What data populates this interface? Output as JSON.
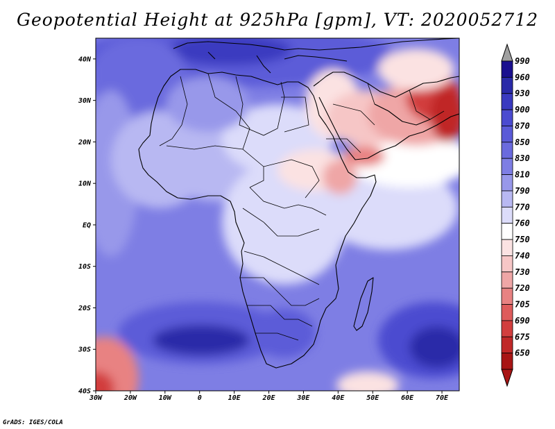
{
  "title": "Geopotential Height at 925hPa [gpm], VT: 2020052712",
  "credit": "GrADS: IGES/COLA",
  "map": {
    "lon_range": [
      -30,
      75
    ],
    "lat_range": [
      -40,
      45
    ],
    "lat_labels": [
      {
        "lat": 40,
        "text": "40N"
      },
      {
        "lat": 30,
        "text": "30N"
      },
      {
        "lat": 20,
        "text": "20N"
      },
      {
        "lat": 10,
        "text": "10N"
      },
      {
        "lat": 0,
        "text": "EQ"
      },
      {
        "lat": -10,
        "text": "10S"
      },
      {
        "lat": -20,
        "text": "20S"
      },
      {
        "lat": -30,
        "text": "30S"
      },
      {
        "lat": -40,
        "text": "40S"
      }
    ],
    "lon_labels": [
      {
        "lon": -30,
        "text": "30W"
      },
      {
        "lon": -20,
        "text": "20W"
      },
      {
        "lon": -10,
        "text": "10W"
      },
      {
        "lon": 0,
        "text": "0"
      },
      {
        "lon": 10,
        "text": "10E"
      },
      {
        "lon": 20,
        "text": "20E"
      },
      {
        "lon": 30,
        "text": "30E"
      },
      {
        "lon": 40,
        "text": "40E"
      },
      {
        "lon": 50,
        "text": "50E"
      },
      {
        "lon": 60,
        "text": "60E"
      },
      {
        "lon": 70,
        "text": "70E"
      }
    ]
  },
  "colorbar": {
    "levels": [
      "990",
      "960",
      "930",
      "900",
      "870",
      "850",
      "830",
      "810",
      "790",
      "770",
      "760",
      "750",
      "740",
      "730",
      "720",
      "705",
      "690",
      "675",
      "650"
    ],
    "colors": [
      "#1a0f8f",
      "#2a2aa8",
      "#3a3ac0",
      "#4b4bd0",
      "#5b5bd8",
      "#6a6ade",
      "#7e7ee4",
      "#9898ea",
      "#b8b8f2",
      "#dcdcfa",
      "#ffffff",
      "#fbe2e2",
      "#f6c6c6",
      "#efa6a6",
      "#e88282",
      "#de5c5c",
      "#d23e3e",
      "#c02828",
      "#a81515"
    ],
    "top_arrow_color": "#a0a0a0",
    "bottom_arrow_color": "#a81515"
  }
}
